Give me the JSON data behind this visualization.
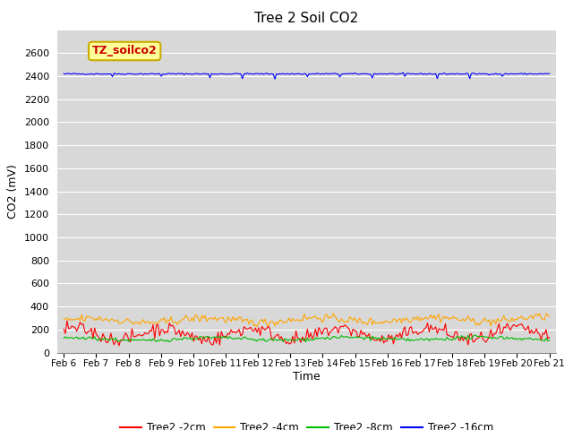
{
  "title": "Tree 2 Soil CO2",
  "ylabel": "CO2 (mV)",
  "xlabel": "Time",
  "annotation": "TZ_soilco2",
  "ylim": [
    0,
    2800
  ],
  "yticks": [
    0,
    200,
    400,
    600,
    800,
    1000,
    1200,
    1400,
    1600,
    1800,
    2000,
    2200,
    2400,
    2600
  ],
  "xtick_labels": [
    "Feb 6",
    "Feb 7",
    "Feb 8",
    "Feb 9",
    "Feb 10",
    "Feb 11",
    "Feb 12",
    "Feb 13",
    "Feb 14",
    "Feb 15",
    "Feb 16",
    "Feb 17",
    "Feb 18",
    "Feb 19",
    "Feb 20",
    "Feb 21"
  ],
  "series_colors": {
    "Tree2 -2cm": "#ff0000",
    "Tree2 -4cm": "#ffa500",
    "Tree2 -8cm": "#00bb00",
    "Tree2 -16cm": "#0000ff"
  },
  "fig_bg_color": "#ffffff",
  "plot_bg_color": "#d8d8d8",
  "grid_color": "#ffffff",
  "n_points": 300,
  "seed": 42
}
